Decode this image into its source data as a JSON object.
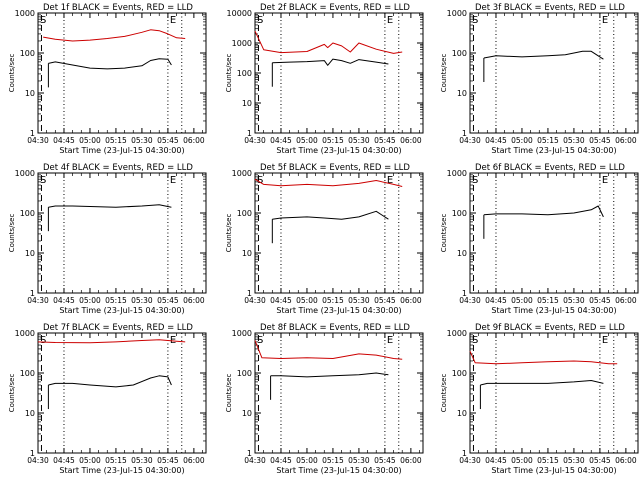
{
  "figure": {
    "xlabel_prefix": "Start Time (23-Jul-15 04:30:00)"
  },
  "chart_data": [
    {
      "type": "line",
      "title": "Det 1f BLACK = Events, RED = LLD",
      "xlabel": "Start Time (23-Jul-15 04:30:00)",
      "ylabel": "Counts/sec",
      "yscale": "log",
      "ylim": [
        1,
        1000
      ],
      "yticks": [
        "1",
        "10",
        "100",
        "1000"
      ],
      "xticks": [
        "04:30",
        "04:45",
        "05:00",
        "05:15",
        "05:30",
        "05:45",
        "06:00"
      ],
      "markers": {
        "S": "04:30",
        "E": "05:45"
      },
      "dashed_at": "04:32",
      "dotted_at": [
        "04:45",
        "05:45",
        "05:53"
      ],
      "series": [
        {
          "color": "#000000",
          "x": [
            "04:36",
            "04:40",
            "04:50",
            "05:00",
            "05:10",
            "05:20",
            "05:30",
            "05:35",
            "05:40",
            "05:45",
            "05:47"
          ],
          "values": [
            55,
            60,
            50,
            42,
            40,
            42,
            48,
            65,
            72,
            70,
            50
          ]
        },
        {
          "color": "#cc0000",
          "x": [
            "04:33",
            "04:40",
            "04:50",
            "05:00",
            "05:10",
            "05:20",
            "05:30",
            "05:35",
            "05:40",
            "05:45",
            "05:50",
            "05:55"
          ],
          "values": [
            250,
            220,
            200,
            210,
            230,
            260,
            330,
            380,
            360,
            300,
            240,
            230
          ]
        }
      ]
    },
    {
      "type": "line",
      "title": "Det 2f BLACK = Events, RED = LLD",
      "xlabel": "Start Time (23-Jul-15 04:30:00)",
      "ylabel": "Counts/sec",
      "yscale": "log",
      "ylim": [
        1,
        10000
      ],
      "yticks": [
        "1",
        "10",
        "100",
        "1000",
        "10000"
      ],
      "xticks": [
        "04:30",
        "04:45",
        "05:00",
        "05:15",
        "05:30",
        "05:45",
        "06:00"
      ],
      "markers": {
        "S": "04:30",
        "E": "05:45"
      },
      "dashed_at": "04:32",
      "dotted_at": [
        "04:45",
        "05:45",
        "05:53"
      ],
      "series": [
        {
          "color": "#000000",
          "x": [
            "04:40",
            "04:50",
            "05:00",
            "05:10",
            "05:12",
            "05:15",
            "05:20",
            "05:25",
            "05:30",
            "05:40",
            "05:47"
          ],
          "values": [
            220,
            230,
            240,
            260,
            180,
            290,
            260,
            210,
            280,
            230,
            200
          ]
        },
        {
          "color": "#cc0000",
          "x": [
            "04:30",
            "04:35",
            "04:45",
            "05:00",
            "05:10",
            "05:12",
            "05:15",
            "05:20",
            "05:25",
            "05:30",
            "05:40",
            "05:50",
            "05:55"
          ],
          "values": [
            2500,
            600,
            480,
            520,
            900,
            700,
            1000,
            800,
            500,
            1000,
            620,
            450,
            500
          ]
        }
      ]
    },
    {
      "type": "line",
      "title": "Det 3f BLACK = Events, RED = LLD",
      "xlabel": "Start Time (23-Jul-15 04:30:00)",
      "ylabel": "Counts/sec",
      "yscale": "log",
      "ylim": [
        1,
        1000
      ],
      "yticks": [
        "1",
        "10",
        "100",
        "1000"
      ],
      "xticks": [
        "04:30",
        "04:45",
        "05:00",
        "05:15",
        "05:30",
        "05:45",
        "06:00"
      ],
      "markers": {
        "S": "04:30",
        "E": "05:45"
      },
      "dashed_at": "04:32",
      "dotted_at": [
        "04:45",
        "05:45",
        "05:53"
      ],
      "series": [
        {
          "color": "#000000",
          "x": [
            "04:38",
            "04:45",
            "05:00",
            "05:15",
            "05:25",
            "05:35",
            "05:40",
            "05:47"
          ],
          "values": [
            75,
            85,
            80,
            85,
            90,
            110,
            110,
            70
          ]
        }
      ]
    },
    {
      "type": "line",
      "title": "Det 4f BLACK = Events, RED = LLD",
      "xlabel": "Start Time (23-Jul-15 04:30:00)",
      "ylabel": "Counts/sec",
      "yscale": "log",
      "ylim": [
        1,
        1000
      ],
      "yticks": [
        "1",
        "10",
        "100",
        "1000"
      ],
      "xticks": [
        "04:30",
        "04:45",
        "05:00",
        "05:15",
        "05:30",
        "05:45",
        "06:00"
      ],
      "markers": {
        "S": "04:30",
        "E": "05:45"
      },
      "dashed_at": "04:32",
      "dotted_at": [
        "04:45",
        "05:45",
        "05:53"
      ],
      "series": [
        {
          "color": "#000000",
          "x": [
            "04:36",
            "04:40",
            "04:50",
            "05:00",
            "05:15",
            "05:30",
            "05:40",
            "05:47"
          ],
          "values": [
            140,
            150,
            150,
            145,
            140,
            150,
            160,
            140
          ]
        }
      ]
    },
    {
      "type": "line",
      "title": "Det 5f BLACK = Events, RED = LLD",
      "xlabel": "Start Time (23-Jul-15 04:30:00)",
      "ylabel": "Counts/sec",
      "yscale": "log",
      "ylim": [
        1,
        1000
      ],
      "yticks": [
        "1",
        "10",
        "100",
        "1000"
      ],
      "xticks": [
        "04:30",
        "04:45",
        "05:00",
        "05:15",
        "05:30",
        "05:45",
        "06:00"
      ],
      "markers": {
        "S": "04:30",
        "E": "05:45"
      },
      "dashed_at": "04:32",
      "dotted_at": [
        "04:45",
        "05:45",
        "05:53"
      ],
      "series": [
        {
          "color": "#000000",
          "x": [
            "04:40",
            "04:45",
            "05:00",
            "05:10",
            "05:20",
            "05:30",
            "05:40",
            "05:47"
          ],
          "values": [
            70,
            75,
            80,
            75,
            70,
            80,
            110,
            70
          ]
        },
        {
          "color": "#cc0000",
          "x": [
            "04:30",
            "04:35",
            "04:45",
            "05:00",
            "05:15",
            "05:30",
            "05:40",
            "05:50",
            "05:55"
          ],
          "values": [
            700,
            520,
            480,
            520,
            480,
            550,
            650,
            520,
            460
          ]
        }
      ]
    },
    {
      "type": "line",
      "title": "Det 6f BLACK = Events, RED = LLD",
      "xlabel": "Start Time (23-Jul-15 04:30:00)",
      "ylabel": "Counts/sec",
      "yscale": "log",
      "ylim": [
        1,
        1000
      ],
      "yticks": [
        "1",
        "10",
        "100",
        "1000"
      ],
      "xticks": [
        "04:30",
        "04:45",
        "05:00",
        "05:15",
        "05:30",
        "05:45",
        "06:00"
      ],
      "markers": {
        "S": "04:30",
        "E": "05:45"
      },
      "dashed_at": "04:32",
      "dotted_at": [
        "04:45",
        "05:45",
        "05:53"
      ],
      "series": [
        {
          "color": "#000000",
          "x": [
            "04:38",
            "04:45",
            "05:00",
            "05:15",
            "05:30",
            "05:40",
            "05:44",
            "05:47"
          ],
          "values": [
            90,
            95,
            95,
            90,
            100,
            120,
            150,
            80
          ]
        }
      ]
    },
    {
      "type": "line",
      "title": "Det 7f BLACK = Events, RED = LLD",
      "xlabel": "Start Time (23-Jul-15 04:30:00)",
      "ylabel": "Counts/sec",
      "yscale": "log",
      "ylim": [
        1,
        1000
      ],
      "yticks": [
        "1",
        "10",
        "100",
        "1000"
      ],
      "xticks": [
        "04:30",
        "04:45",
        "05:00",
        "05:15",
        "05:30",
        "05:45",
        "06:00"
      ],
      "markers": {
        "S": "04:30",
        "E": "05:45"
      },
      "dashed_at": "04:32",
      "dotted_at": [
        "04:45",
        "05:45",
        "05:53"
      ],
      "series": [
        {
          "color": "#000000",
          "x": [
            "04:36",
            "04:40",
            "04:50",
            "05:00",
            "05:15",
            "05:25",
            "05:35",
            "05:40",
            "05:45",
            "05:47"
          ],
          "values": [
            50,
            55,
            55,
            50,
            45,
            50,
            75,
            85,
            80,
            50
          ]
        },
        {
          "color": "#cc0000",
          "x": [
            "04:30",
            "04:40",
            "05:00",
            "05:15",
            "05:30",
            "05:40",
            "05:50",
            "05:55"
          ],
          "values": [
            600,
            580,
            570,
            600,
            650,
            680,
            620,
            600
          ]
        }
      ]
    },
    {
      "type": "line",
      "title": "Det 8f BLACK = Events, RED = LLD",
      "xlabel": "Start Time (23-Jul-15 04:30:00)",
      "ylabel": "Counts/sec",
      "yscale": "log",
      "ylim": [
        1,
        1000
      ],
      "yticks": [
        "1",
        "10",
        "100",
        "1000"
      ],
      "xticks": [
        "04:30",
        "04:45",
        "05:00",
        "05:15",
        "05:30",
        "05:45",
        "06:00"
      ],
      "markers": {
        "S": "04:30",
        "E": "05:45"
      },
      "dashed_at": "04:32",
      "dotted_at": [
        "04:45",
        "05:45",
        "05:53"
      ],
      "series": [
        {
          "color": "#000000",
          "x": [
            "04:39",
            "04:45",
            "05:00",
            "05:15",
            "05:30",
            "05:40",
            "05:47"
          ],
          "values": [
            85,
            85,
            80,
            85,
            90,
            100,
            90
          ]
        },
        {
          "color": "#cc0000",
          "x": [
            "04:30",
            "04:34",
            "04:45",
            "05:00",
            "05:15",
            "05:30",
            "05:40",
            "05:50",
            "05:55"
          ],
          "values": [
            650,
            240,
            230,
            240,
            230,
            300,
            280,
            230,
            220
          ]
        }
      ]
    },
    {
      "type": "line",
      "title": "Det 9f BLACK = Events, RED = LLD",
      "xlabel": "Start Time (23-Jul-15 04:30:00)",
      "ylabel": "Counts/sec",
      "yscale": "log",
      "ylim": [
        1,
        1000
      ],
      "yticks": [
        "1",
        "10",
        "100",
        "1000"
      ],
      "xticks": [
        "04:30",
        "04:45",
        "05:00",
        "05:15",
        "05:30",
        "05:45",
        "06:00"
      ],
      "markers": {
        "S": "04:30",
        "E": "05:45"
      },
      "dashed_at": "04:32",
      "dotted_at": [
        "04:45",
        "05:45",
        "05:53"
      ],
      "series": [
        {
          "color": "#000000",
          "x": [
            "04:36",
            "04:40",
            "05:00",
            "05:15",
            "05:30",
            "05:40",
            "05:47"
          ],
          "values": [
            50,
            55,
            55,
            55,
            60,
            65,
            55
          ]
        },
        {
          "color": "#cc0000",
          "x": [
            "04:30",
            "04:33",
            "04:45",
            "05:00",
            "05:15",
            "05:30",
            "05:40",
            "05:50",
            "05:55"
          ],
          "values": [
            350,
            180,
            170,
            180,
            190,
            200,
            190,
            170,
            170
          ]
        }
      ]
    }
  ]
}
